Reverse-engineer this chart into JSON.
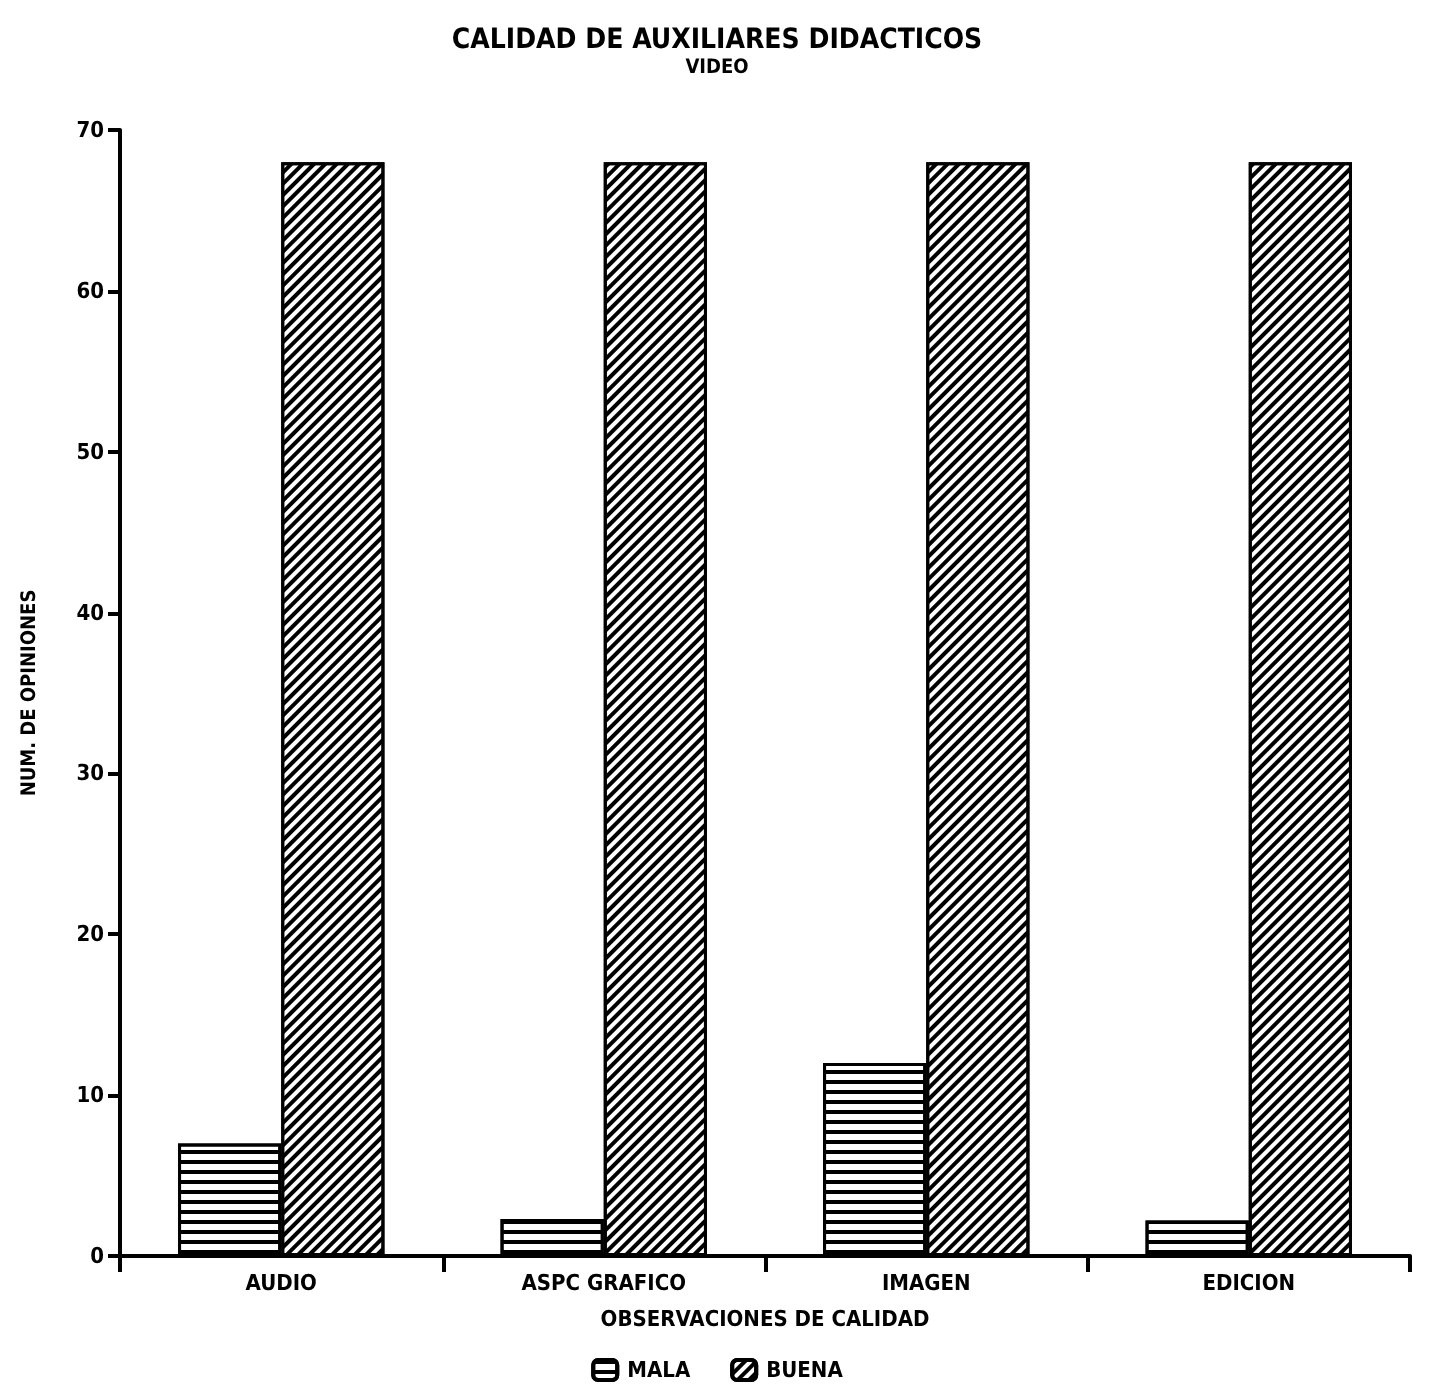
{
  "chart_data": {
    "type": "bar",
    "title": "CALIDAD DE AUXILIARES DIDACTICOS",
    "subtitle": "VIDEO",
    "xlabel": "OBSERVACIONES DE CALIDAD",
    "ylabel": "NUM. DE OPINIONES",
    "categories": [
      "AUDIO",
      "ASPC GRAFICO",
      "IMAGEN",
      "EDICION"
    ],
    "series": [
      {
        "name": "MALA",
        "color": "#000000",
        "values": [
          7,
          2.3,
          12,
          2.2
        ]
      },
      {
        "name": "BUENA",
        "color": "#000000",
        "values": [
          68,
          68,
          68,
          68
        ]
      }
    ],
    "ylim": [
      0,
      70
    ],
    "yticks": [
      0,
      10,
      20,
      30,
      40,
      50,
      60,
      70
    ],
    "grid": false,
    "legend": "bottom"
  }
}
